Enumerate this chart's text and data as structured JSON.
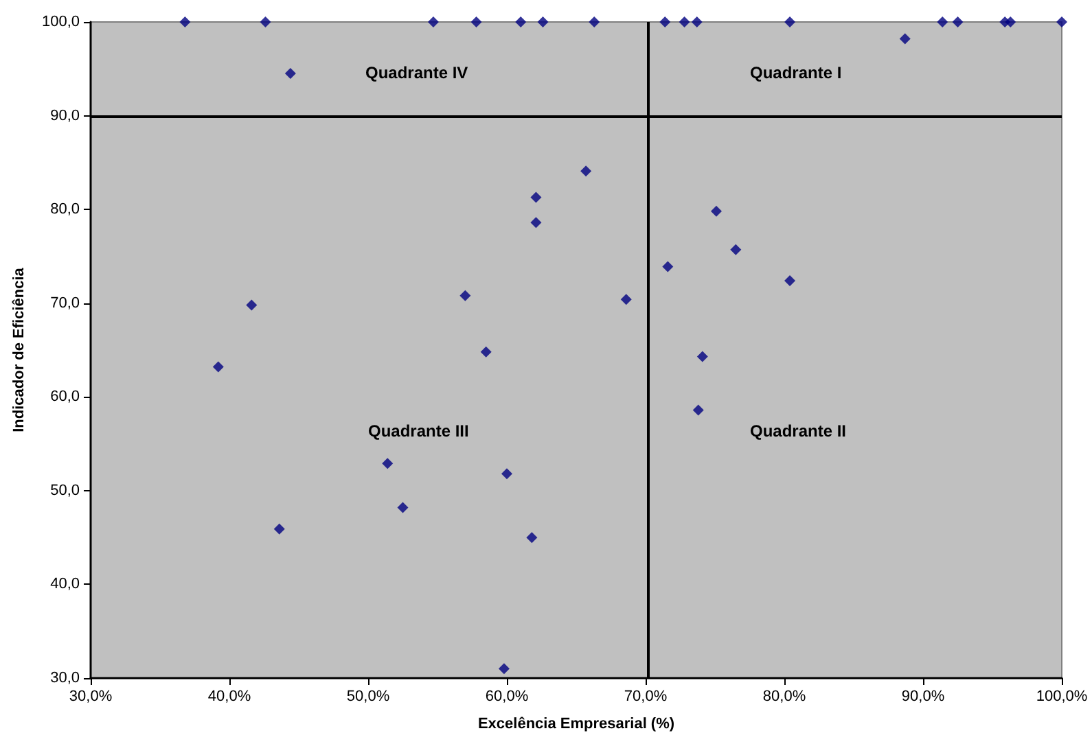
{
  "chart_data": {
    "type": "scatter",
    "xlabel": "Excelência Empresarial (%)",
    "ylabel": "Indicador de Eficiência",
    "x": [
      36.8,
      42.6,
      44.4,
      54.7,
      57.8,
      61.0,
      62.6,
      62.1,
      62.1,
      41.6,
      57.0,
      58.5,
      66.3,
      71.4,
      72.8,
      73.7,
      80.4,
      88.7,
      91.4,
      92.5,
      95.9,
      96.3,
      100.0,
      65.7,
      75.1,
      76.5,
      71.6,
      80.4,
      68.6,
      74.1,
      73.8,
      39.2,
      51.4,
      60.0,
      52.5,
      43.6,
      61.8,
      59.8
    ],
    "values": [
      100,
      100,
      94.5,
      100,
      100,
      100,
      100,
      81.3,
      78.6,
      69.8,
      70.8,
      64.8,
      100,
      100,
      100,
      100,
      100,
      98.2,
      100,
      100,
      100,
      100,
      100,
      84.1,
      79.8,
      75.7,
      73.9,
      72.4,
      70.4,
      64.3,
      58.6,
      63.2,
      52.9,
      51.8,
      48.2,
      45.9,
      45.0,
      31.0
    ],
    "color": "#000080",
    "marker": "diamond",
    "grid": false,
    "xlim": [
      30,
      100
    ],
    "xticks": [
      {
        "value": 30,
        "label": "30,0%"
      },
      {
        "value": 40,
        "label": "40,0%"
      },
      {
        "value": 50,
        "label": "50,0%"
      },
      {
        "value": 60,
        "label": "60,0%"
      },
      {
        "value": 70,
        "label": "70,0%"
      },
      {
        "value": 80,
        "label": "80,0%"
      },
      {
        "value": 90,
        "label": "90,0%"
      },
      {
        "value": 100,
        "label": "100,0%"
      }
    ],
    "ylim": [
      30,
      100
    ],
    "yticks": [
      {
        "value": 30,
        "label": "30,0"
      },
      {
        "value": 40,
        "label": "40,0"
      },
      {
        "value": 50,
        "label": "50,0"
      },
      {
        "value": 60,
        "label": "60,0"
      },
      {
        "value": 70,
        "label": "70,0"
      },
      {
        "value": 80,
        "label": "80,0"
      },
      {
        "value": 90,
        "label": "90,0"
      },
      {
        "value": 100,
        "label": "100,0"
      }
    ],
    "ref_lines": [
      {
        "axis": "x",
        "value": 70.2,
        "color": "#000000"
      },
      {
        "axis": "y",
        "value": 90,
        "color": "#000000"
      }
    ],
    "annotations": [
      "Quadrante IV",
      "Quadrante I",
      "Quadrante III",
      "Quadrante II"
    ]
  }
}
